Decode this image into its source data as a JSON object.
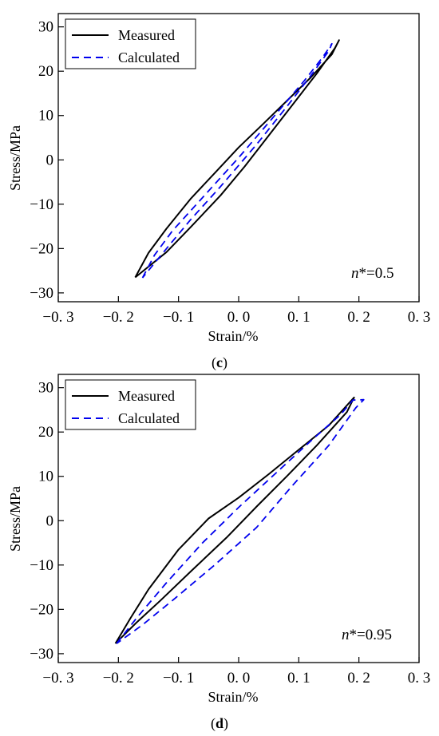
{
  "chart_data": [
    {
      "type": "line",
      "panel_label": "(c)",
      "annotation": {
        "prefix": "n",
        "text": "*=0.5"
      },
      "xlabel": "Strain/%",
      "ylabel": "Stress/MPa",
      "xlim": [
        -0.3,
        0.3
      ],
      "ylim": [
        -32,
        33
      ],
      "xticks": [
        -0.3,
        -0.2,
        -0.1,
        0.0,
        0.1,
        0.2,
        0.3
      ],
      "xtick_labels": [
        "−0. 3",
        "−0. 2",
        "−0. 1",
        "0. 0",
        "0. 1",
        "0. 2",
        "0. 3"
      ],
      "yticks": [
        -30,
        -20,
        -10,
        0,
        10,
        20,
        30
      ],
      "ytick_labels": [
        "−30",
        "−20",
        "−10",
        "0",
        "10",
        "20",
        "30"
      ],
      "legend_position": "top-left",
      "grid": false,
      "series": [
        {
          "name": "Measured",
          "color": "#000000",
          "dash": "solid",
          "points": [
            [
              -0.172,
              -26.5
            ],
            [
              -0.15,
              -21.0
            ],
            [
              -0.12,
              -15.5
            ],
            [
              -0.08,
              -8.8
            ],
            [
              -0.04,
              -3.0
            ],
            [
              0.0,
              2.8
            ],
            [
              0.04,
              8.0
            ],
            [
              0.08,
              13.3
            ],
            [
              0.12,
              18.6
            ],
            [
              0.155,
              23.8
            ],
            [
              0.167,
              27.0
            ],
            [
              0.16,
              25.2
            ],
            [
              0.13,
              19.5
            ],
            [
              0.09,
              12.5
            ],
            [
              0.05,
              5.5
            ],
            [
              0.01,
              -1.5
            ],
            [
              -0.03,
              -8.0
            ],
            [
              -0.08,
              -15.2
            ],
            [
              -0.12,
              -20.8
            ],
            [
              -0.172,
              -26.5
            ]
          ]
        },
        {
          "name": "Calculated",
          "color": "#0000ee",
          "dash": "dashed",
          "points": [
            [
              -0.16,
              -26.6
            ],
            [
              -0.14,
              -21.5
            ],
            [
              -0.11,
              -16.0
            ],
            [
              -0.06,
              -8.5
            ],
            [
              0.0,
              0.5
            ],
            [
              0.06,
              10.0
            ],
            [
              0.11,
              18.0
            ],
            [
              0.14,
              23.2
            ],
            [
              0.155,
              26.2
            ],
            [
              0.15,
              24.6
            ],
            [
              0.12,
              19.0
            ],
            [
              0.08,
              12.0
            ],
            [
              0.03,
              3.5
            ],
            [
              -0.03,
              -6.0
            ],
            [
              -0.08,
              -13.5
            ],
            [
              -0.12,
              -20.0
            ],
            [
              -0.16,
              -26.6
            ]
          ]
        }
      ]
    },
    {
      "type": "line",
      "panel_label": "(d)",
      "annotation": {
        "prefix": "n",
        "text": "*=0.95"
      },
      "xlabel": "Strain/%",
      "ylabel": "Stress/MPa",
      "xlim": [
        -0.3,
        0.3
      ],
      "ylim": [
        -32,
        33
      ],
      "xticks": [
        -0.3,
        -0.2,
        -0.1,
        0.0,
        0.1,
        0.2,
        0.3
      ],
      "xtick_labels": [
        "−0. 3",
        "−0. 2",
        "−0. 1",
        "0. 0",
        "0. 1",
        "0. 2",
        "0. 3"
      ],
      "yticks": [
        -30,
        -20,
        -10,
        0,
        10,
        20,
        30
      ],
      "ytick_labels": [
        "−30",
        "−20",
        "−10",
        "0",
        "10",
        "20",
        "30"
      ],
      "legend_position": "top-left",
      "grid": false,
      "series": [
        {
          "name": "Measured",
          "color": "#000000",
          "dash": "solid",
          "points": [
            [
              -0.205,
              -27.7
            ],
            [
              -0.18,
              -22.0
            ],
            [
              -0.15,
              -15.5
            ],
            [
              -0.1,
              -6.5
            ],
            [
              -0.05,
              0.5
            ],
            [
              0.0,
              5.2
            ],
            [
              0.05,
              10.5
            ],
            [
              0.1,
              16.0
            ],
            [
              0.15,
              21.5
            ],
            [
              0.192,
              27.8
            ],
            [
              0.18,
              24.5
            ],
            [
              0.13,
              17.0
            ],
            [
              0.08,
              10.0
            ],
            [
              0.03,
              3.2
            ],
            [
              -0.02,
              -3.8
            ],
            [
              -0.08,
              -11.5
            ],
            [
              -0.13,
              -18.0
            ],
            [
              -0.17,
              -23.0
            ],
            [
              -0.205,
              -27.7
            ]
          ]
        },
        {
          "name": "Calculated",
          "color": "#0000ee",
          "dash": "dashed",
          "points": [
            [
              -0.203,
              -27.7
            ],
            [
              -0.17,
              -22.0
            ],
            [
              -0.12,
              -14.0
            ],
            [
              -0.06,
              -5.0
            ],
            [
              0.0,
              3.0
            ],
            [
              0.06,
              10.5
            ],
            [
              0.12,
              18.0
            ],
            [
              0.17,
              24.0
            ],
            [
              0.19,
              27.2
            ],
            [
              0.208,
              27.3
            ],
            [
              0.195,
              25.5
            ],
            [
              0.15,
              17.0
            ],
            [
              0.09,
              8.0
            ],
            [
              0.03,
              -1.5
            ],
            [
              -0.04,
              -10.0
            ],
            [
              -0.11,
              -18.0
            ],
            [
              -0.16,
              -23.5
            ],
            [
              -0.203,
              -27.7
            ]
          ]
        }
      ]
    }
  ]
}
